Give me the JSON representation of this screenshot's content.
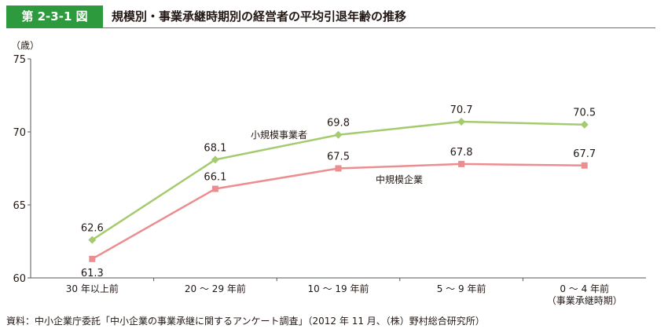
{
  "header": {
    "figure_label": "第 2-3-1 図",
    "title": "規模別・事業承継時期別の経営者の平均引退年齢の推移"
  },
  "chart_data": {
    "type": "line",
    "ylabel": "（歳）",
    "ylim": [
      60,
      75
    ],
    "yticks": [
      60,
      65,
      70,
      75
    ],
    "categories": [
      "30 年以上前",
      "20 ～ 29 年前",
      "10 ～ 19 年前",
      "5 ～ 9 年前",
      "0 ～ 4 年前"
    ],
    "x_axis_note": "（事業承継時期）",
    "series": [
      {
        "name": "小規模事業者",
        "values": [
          62.6,
          68.1,
          69.8,
          70.7,
          70.5
        ],
        "labels": [
          "62.6",
          "68.1",
          "69.8",
          "70.7",
          "70.5"
        ],
        "color": "#a5cb6f",
        "marker": "diamond",
        "label_position": "above"
      },
      {
        "name": "中規模企業",
        "values": [
          61.3,
          66.1,
          67.5,
          67.8,
          67.7
        ],
        "labels": [
          "61.3",
          "66.1",
          "67.5",
          "67.8",
          "67.7"
        ],
        "color": "#ec8d8f",
        "marker": "square",
        "label_position": "mixed"
      }
    ],
    "grid": false
  },
  "source": "資料：中小企業庁委託「中小企業の事業承継に関するアンケート調査」（2012 年 11 月、（株）野村総合研究所）"
}
